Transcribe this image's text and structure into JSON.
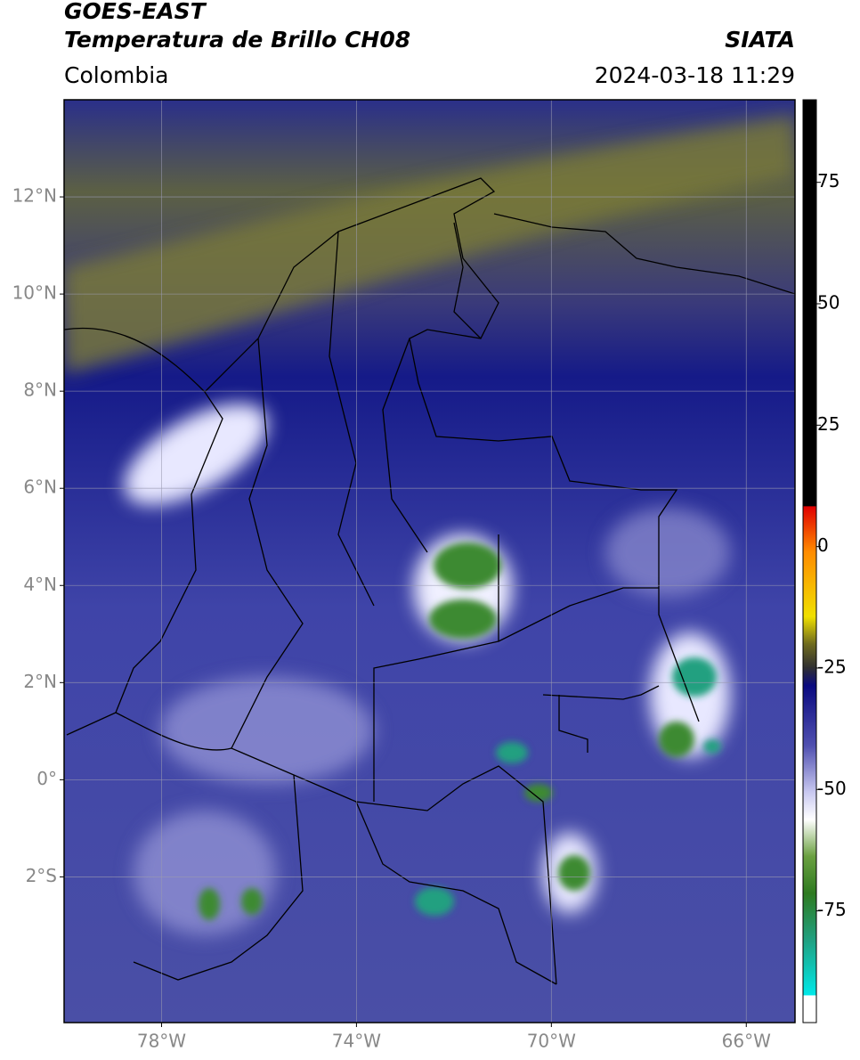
{
  "title": "GOES-EAST",
  "subtitle": "Temperatura de Brillo CH08",
  "source": "SIATA",
  "region": "Colombia",
  "timestamp": "2024-03-18 11:29",
  "map": {
    "xlim": [
      -80,
      -65
    ],
    "ylim": [
      -5,
      14
    ],
    "xticks": [
      {
        "value": -78,
        "label": "78°W"
      },
      {
        "value": -74,
        "label": "74°W"
      },
      {
        "value": -70,
        "label": "70°W"
      },
      {
        "value": -66,
        "label": "66°W"
      }
    ],
    "yticks": [
      {
        "value": 12,
        "label": "12°N"
      },
      {
        "value": 10,
        "label": "10°N"
      },
      {
        "value": 8,
        "label": "8°N"
      },
      {
        "value": 6,
        "label": "6°N"
      },
      {
        "value": 4,
        "label": "4°N"
      },
      {
        "value": 2,
        "label": "2°N"
      },
      {
        "value": 0,
        "label": "0°"
      },
      {
        "value": -2,
        "label": "2°S"
      }
    ],
    "grid": true
  },
  "colorbar": {
    "clim": [
      -98,
      92
    ],
    "ticks": [
      75,
      50,
      25,
      0,
      -25,
      -50,
      -75
    ]
  }
}
